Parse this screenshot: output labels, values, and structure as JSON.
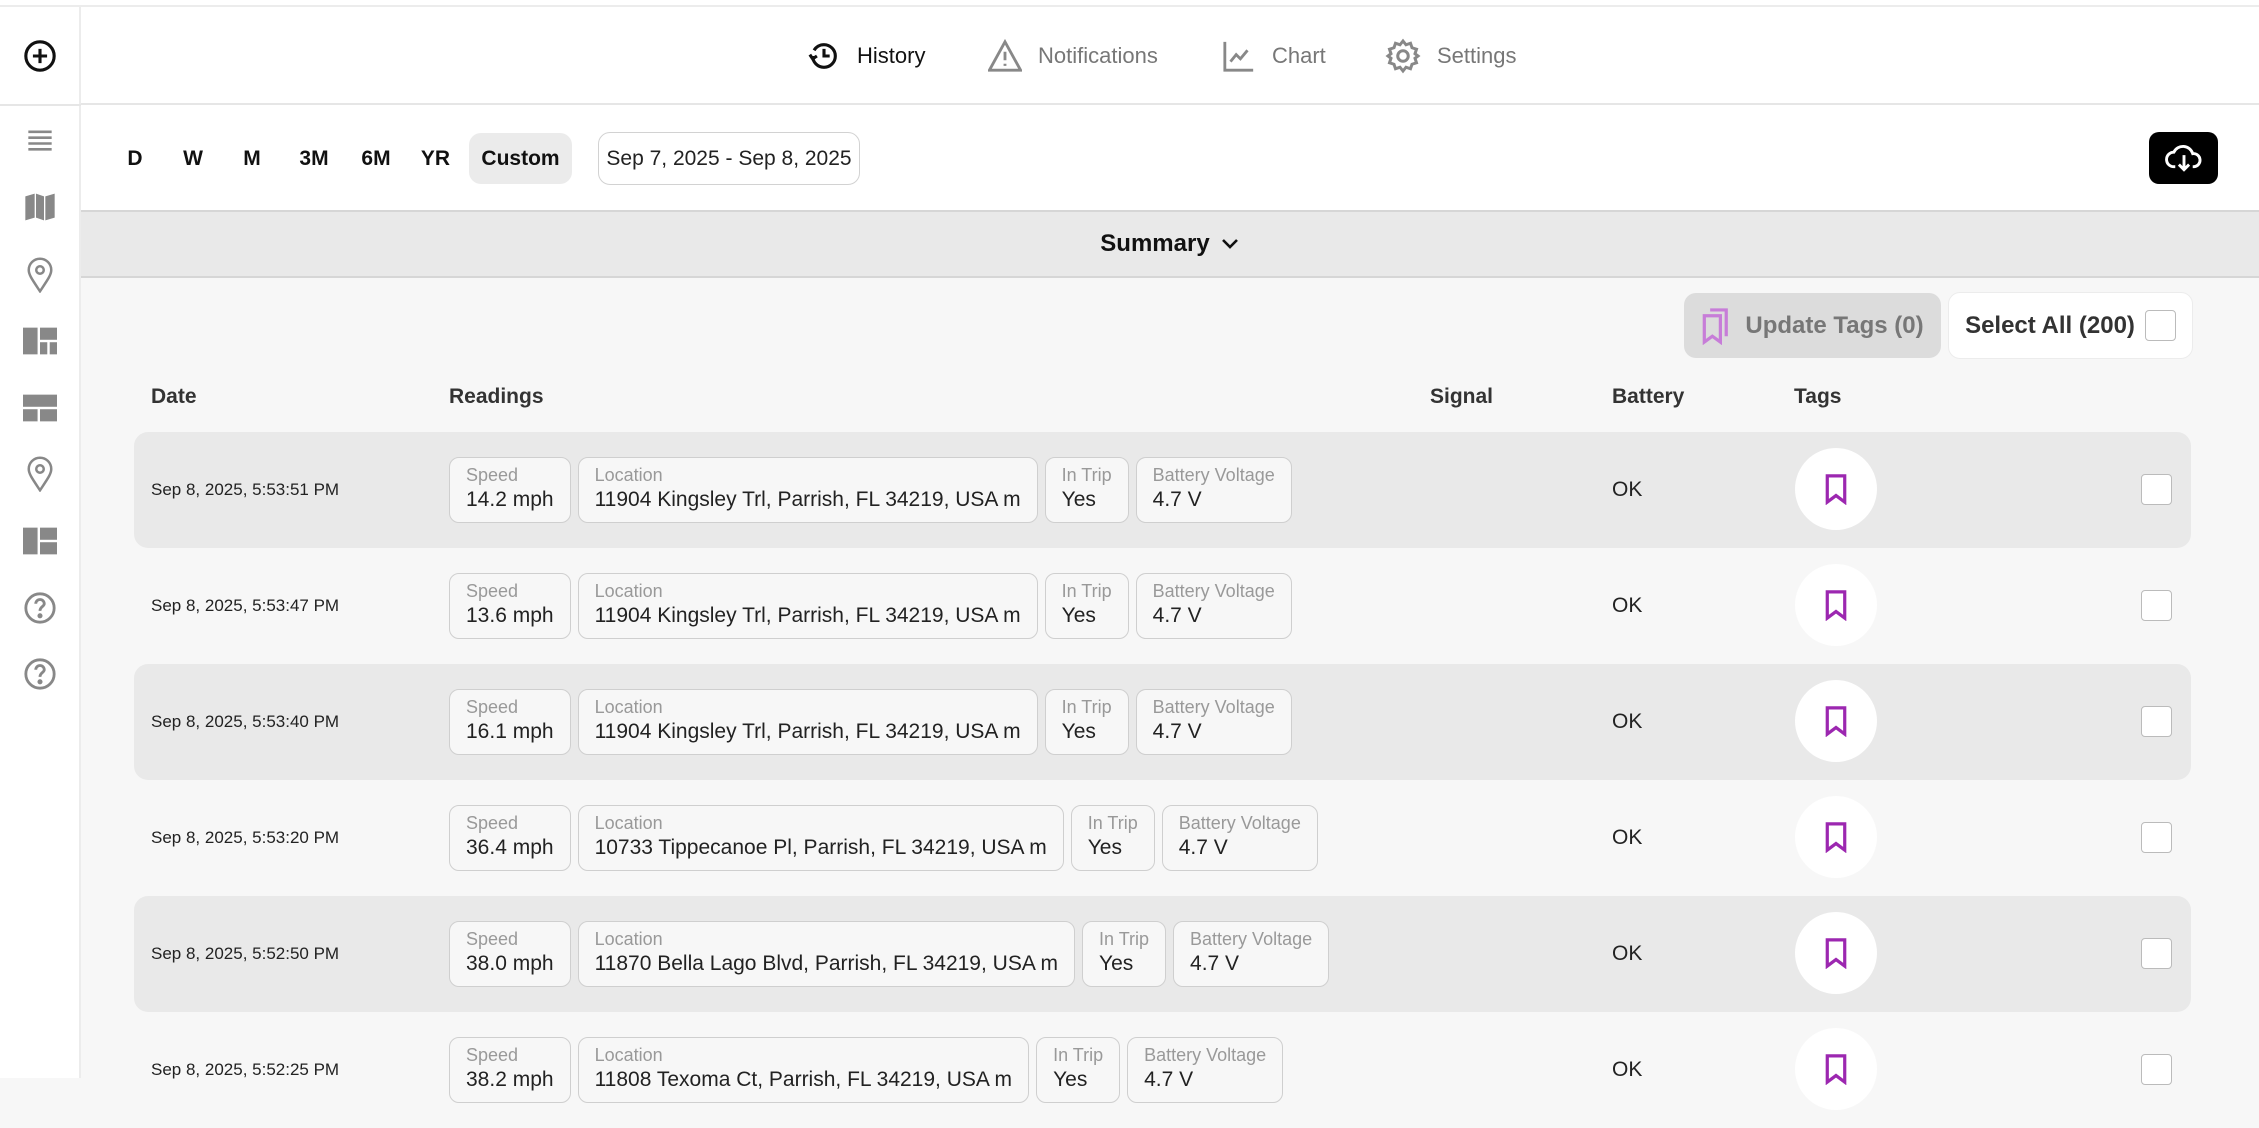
{
  "nav": [
    {
      "label": "History",
      "icon": "history-icon",
      "active": true
    },
    {
      "label": "Notifications",
      "icon": "warning-icon",
      "active": false
    },
    {
      "label": "Chart",
      "icon": "chart-icon",
      "active": false
    },
    {
      "label": "Settings",
      "icon": "gear-icon",
      "active": false
    }
  ],
  "sidebar": {
    "icons": [
      "add-circle-icon",
      "list-icon",
      "map-icon",
      "location-pin-icon",
      "dashboard-icon",
      "dashboard-icon",
      "location-pin-icon",
      "dashboard-icon",
      "help-icon",
      "help-icon"
    ]
  },
  "filters": {
    "ranges": [
      "D",
      "W",
      "M",
      "3M",
      "6M",
      "YR",
      "Custom"
    ],
    "selected": "Custom",
    "date_range": "Sep 7, 2025 - Sep 8, 2025"
  },
  "summary": {
    "label": "Summary"
  },
  "actions": {
    "update_tags": "Update Tags (0)",
    "select_all": "Select All (200)"
  },
  "colors": {
    "accent": "#9c27b0",
    "tag_light": "#c77dd8"
  },
  "table": {
    "headers": {
      "date": "Date",
      "readings": "Readings",
      "signal": "Signal",
      "battery": "Battery",
      "tags": "Tags"
    },
    "rows": [
      {
        "date": "Sep 8, 2025, 5:53:51 PM",
        "battery": "OK",
        "readings": [
          {
            "label": "Speed",
            "value": "14.2 mph"
          },
          {
            "label": "Location",
            "value": "11904 Kingsley Trl, Parrish, FL 34219, USA m"
          },
          {
            "label": "In Trip",
            "value": "Yes"
          },
          {
            "label": "Battery Voltage",
            "value": "4.7 V"
          }
        ]
      },
      {
        "date": "Sep 8, 2025, 5:53:47 PM",
        "battery": "OK",
        "readings": [
          {
            "label": "Speed",
            "value": "13.6 mph"
          },
          {
            "label": "Location",
            "value": "11904 Kingsley Trl, Parrish, FL 34219, USA m"
          },
          {
            "label": "In Trip",
            "value": "Yes"
          },
          {
            "label": "Battery Voltage",
            "value": "4.7 V"
          }
        ]
      },
      {
        "date": "Sep 8, 2025, 5:53:40 PM",
        "battery": "OK",
        "readings": [
          {
            "label": "Speed",
            "value": "16.1 mph"
          },
          {
            "label": "Location",
            "value": "11904 Kingsley Trl, Parrish, FL 34219, USA m"
          },
          {
            "label": "In Trip",
            "value": "Yes"
          },
          {
            "label": "Battery Voltage",
            "value": "4.7 V"
          }
        ]
      },
      {
        "date": "Sep 8, 2025, 5:53:20 PM",
        "battery": "OK",
        "readings": [
          {
            "label": "Speed",
            "value": "36.4 mph"
          },
          {
            "label": "Location",
            "value": "10733 Tippecanoe Pl, Parrish, FL 34219, USA m"
          },
          {
            "label": "In Trip",
            "value": "Yes"
          },
          {
            "label": "Battery Voltage",
            "value": "4.7 V"
          }
        ]
      },
      {
        "date": "Sep 8, 2025, 5:52:50 PM",
        "battery": "OK",
        "readings": [
          {
            "label": "Speed",
            "value": "38.0 mph"
          },
          {
            "label": "Location",
            "value": "11870 Bella Lago Blvd, Parrish, FL 34219, USA m"
          },
          {
            "label": "In Trip",
            "value": "Yes"
          },
          {
            "label": "Battery Voltage",
            "value": "4.7 V"
          }
        ]
      },
      {
        "date": "Sep 8, 2025, 5:52:25 PM",
        "battery": "OK",
        "readings": [
          {
            "label": "Speed",
            "value": "38.2 mph"
          },
          {
            "label": "Location",
            "value": "11808 Texoma Ct, Parrish, FL 34219, USA m"
          },
          {
            "label": "In Trip",
            "value": "Yes"
          },
          {
            "label": "Battery Voltage",
            "value": "4.7 V"
          }
        ]
      }
    ]
  }
}
